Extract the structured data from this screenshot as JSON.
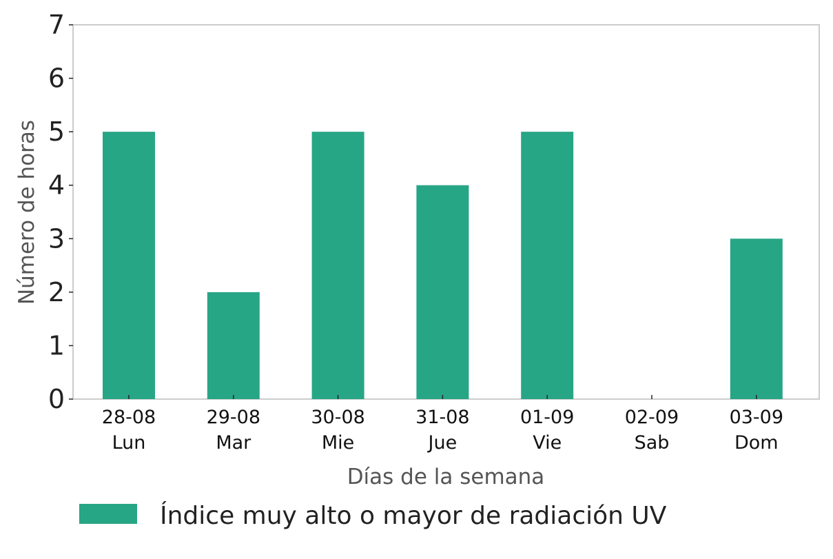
{
  "chart_data": {
    "type": "bar",
    "title": "",
    "xlabel": "Días de la semana",
    "ylabel": "Número de horas",
    "ylim": [
      0,
      7
    ],
    "yticks": [
      0,
      1,
      2,
      3,
      4,
      5,
      6,
      7
    ],
    "categories": [
      {
        "date": "28-08",
        "day": "Lun"
      },
      {
        "date": "29-08",
        "day": "Mar"
      },
      {
        "date": "30-08",
        "day": "Mie"
      },
      {
        "date": "31-08",
        "day": "Jue"
      },
      {
        "date": "01-09",
        "day": "Vie"
      },
      {
        "date": "02-09",
        "day": "Sab"
      },
      {
        "date": "03-09",
        "day": "Dom"
      }
    ],
    "series": [
      {
        "name": "Índice muy alto o mayor de radiación UV",
        "color": "#27a686",
        "values": [
          5,
          2,
          5,
          4,
          5,
          0,
          3
        ]
      }
    ],
    "grid": false,
    "legend_position": "bottom"
  }
}
